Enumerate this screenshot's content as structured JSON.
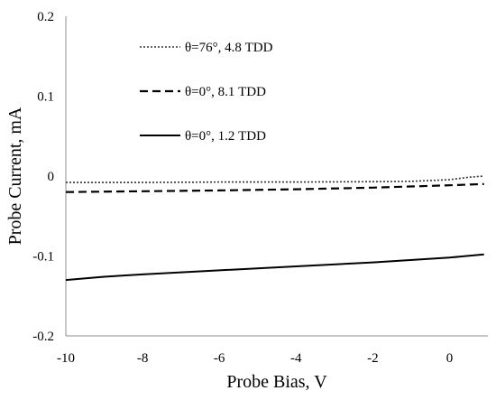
{
  "chart_data": {
    "type": "line",
    "title": "",
    "xlabel": "Probe Bias, V",
    "ylabel": "Probe Current, mA",
    "xlim": [
      -10,
      1
    ],
    "ylim": [
      -0.2,
      0.2
    ],
    "xticks": [
      -10,
      -8,
      -6,
      -4,
      -2,
      0
    ],
    "xtick_labels": [
      "-10",
      "-8",
      "-6",
      "-4",
      "-2",
      "0"
    ],
    "yticks": [
      -0.2,
      -0.1,
      0,
      0.1,
      0.2
    ],
    "ytick_labels": [
      "-0.2",
      "-0.1",
      "0",
      "0.1",
      "0.2"
    ],
    "grid": false,
    "legend_position": "top-left",
    "series": [
      {
        "name": "θ=76°, 4.8 TDD",
        "style": "dotted",
        "color": "#333333",
        "x": [
          -10,
          -8,
          -6,
          -4,
          -2,
          -1,
          0,
          0.5,
          0.9
        ],
        "y": [
          -0.008,
          -0.008,
          -0.0075,
          -0.0075,
          -0.007,
          -0.0065,
          -0.0045,
          -0.0015,
          0.0
        ]
      },
      {
        "name": "θ=0°, 8.1 TDD",
        "style": "dashed",
        "color": "#000000",
        "x": [
          -10,
          -8,
          -6,
          -4,
          -2,
          0,
          0.9
        ],
        "y": [
          -0.02,
          -0.019,
          -0.018,
          -0.0165,
          -0.0145,
          -0.0115,
          -0.01
        ]
      },
      {
        "name": "θ=0°, 1.2 TDD",
        "style": "solid",
        "color": "#000000",
        "x": [
          -10,
          -9,
          -8,
          -6,
          -4,
          -2,
          0,
          0.9
        ],
        "y": [
          -0.13,
          -0.126,
          -0.123,
          -0.118,
          -0.113,
          -0.108,
          -0.102,
          -0.098
        ]
      }
    ]
  }
}
